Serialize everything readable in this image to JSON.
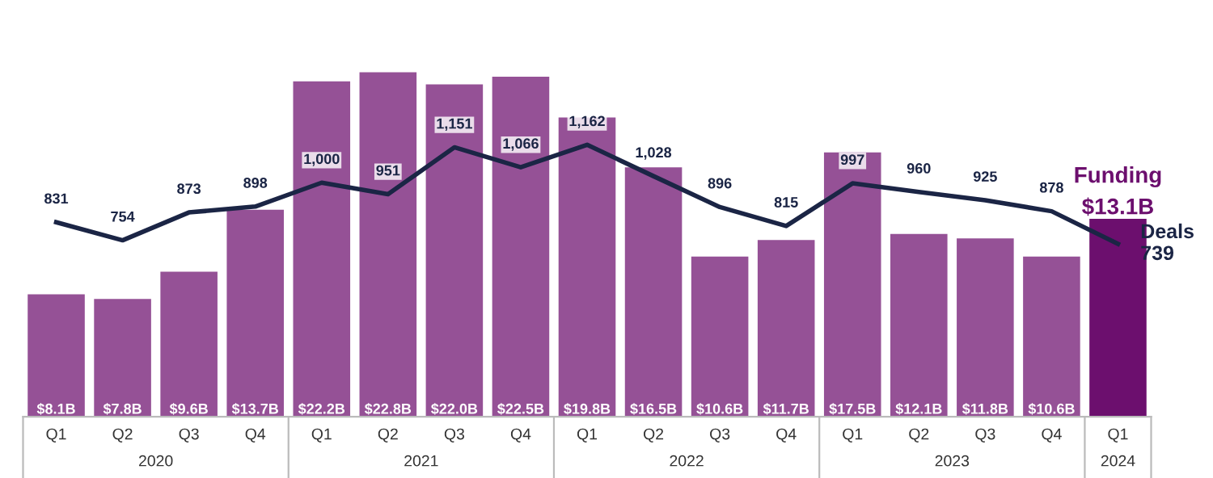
{
  "chart_data": {
    "type": "bar",
    "categories": [
      "Q1",
      "Q2",
      "Q3",
      "Q4",
      "Q1",
      "Q2",
      "Q3",
      "Q4",
      "Q1",
      "Q2",
      "Q3",
      "Q4",
      "Q1",
      "Q2",
      "Q3",
      "Q4",
      "Q1"
    ],
    "series": [
      {
        "name": "Funding",
        "colors": [
          "#955196",
          "#955196",
          "#955196",
          "#955196",
          "#955196",
          "#955196",
          "#955196",
          "#955196",
          "#955196",
          "#955196",
          "#955196",
          "#955196",
          "#955196",
          "#955196",
          "#955196",
          "#955196",
          "#6c0f6e"
        ],
        "values": [
          8.1,
          7.8,
          9.6,
          13.7,
          22.2,
          22.8,
          22.0,
          22.5,
          19.8,
          16.5,
          10.6,
          11.7,
          17.5,
          12.1,
          11.8,
          10.6,
          13.1
        ],
        "value_labels": [
          "$8.1B",
          "$7.8B",
          "$9.6B",
          "$13.7B",
          "$22.2B",
          "$22.8B",
          "$22.0B",
          "$22.5B",
          "$19.8B",
          "$16.5B",
          "$10.6B",
          "$11.7B",
          "$17.5B",
          "$12.1B",
          "$11.8B",
          "$10.6B",
          "$13.1B"
        ]
      },
      {
        "name": "Deals",
        "type": "line",
        "axis": "y2",
        "color": "#1b2545",
        "values": [
          831,
          754,
          873,
          898,
          1000,
          951,
          1151,
          1066,
          1162,
          1028,
          896,
          815,
          997,
          960,
          925,
          878,
          739
        ],
        "value_labels": [
          "831",
          "754",
          "873",
          "898",
          "1,000",
          "951",
          "1,151",
          "1,066",
          "1,162",
          "1,028",
          "896",
          "815",
          "997",
          "960",
          "925",
          "878",
          "739"
        ]
      }
    ],
    "annotations": [
      "2020",
      "2021",
      "2022",
      "2023",
      "2024"
    ],
    "tick_labels": "x",
    "grid": false,
    "legend": false,
    "marker": "none"
  }
}
